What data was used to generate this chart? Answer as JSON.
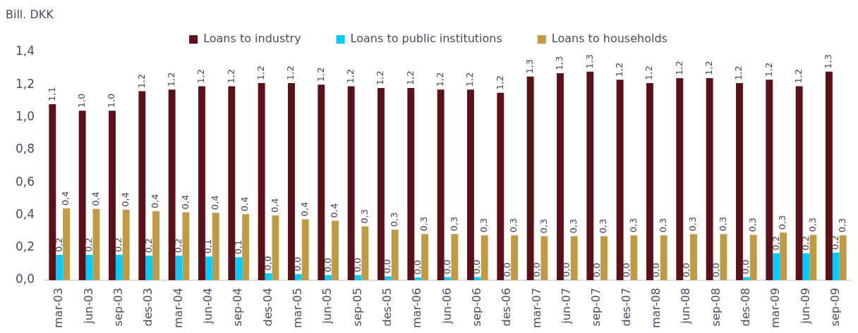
{
  "chart_data": {
    "type": "bar",
    "ylabel": "Bill. DKK",
    "categories": [
      "mar-03",
      "jun-03",
      "sep-03",
      "des-03",
      "mar-04",
      "jun-04",
      "sep-04",
      "des-04",
      "mar-05",
      "jun-05",
      "sep-05",
      "des-05",
      "mar-06",
      "jun-06",
      "sep-06",
      "des-06",
      "mar-07",
      "jun-07",
      "sep-07",
      "des-07",
      "mar-08",
      "jun-08",
      "sep-08",
      "des-08",
      "mar-09",
      "jun-09",
      "sep-09"
    ],
    "series": [
      {
        "name": "Loans to industry",
        "color": "#5c1118",
        "values": [
          1.08,
          1.04,
          1.04,
          1.16,
          1.17,
          1.19,
          1.19,
          1.21,
          1.21,
          1.2,
          1.19,
          1.18,
          1.18,
          1.17,
          1.17,
          1.15,
          1.25,
          1.27,
          1.28,
          1.23,
          1.21,
          1.24,
          1.24,
          1.21,
          1.23,
          1.19,
          1.28
        ],
        "value_labels": [
          "1,1",
          "1,0",
          "1,0",
          "1,2",
          "1,2",
          "1,2",
          "1,2",
          "1,2",
          "1,2",
          "1,2",
          "1,2",
          "1,2",
          "1,2",
          "1,2",
          "1,2",
          "1,2",
          "1,3",
          "1,3",
          "1,3",
          "1,2",
          "1,2",
          "1,2",
          "1,2",
          "1,2",
          "1,2",
          "1,2",
          "1,3"
        ]
      },
      {
        "name": "Loans to public institutions",
        "color": "#00ccff",
        "values": [
          0.155,
          0.155,
          0.155,
          0.15,
          0.15,
          0.145,
          0.141,
          0.042,
          0.037,
          0.031,
          0.031,
          0.023,
          0.017,
          0.019,
          0.019,
          0.002,
          0.002,
          0.002,
          0,
          0,
          0,
          0,
          0,
          0.019,
          0.165,
          0.165,
          0.169
        ],
        "value_labels": [
          "0,2",
          "0,2",
          "0,2",
          "0,2",
          "0,2",
          "0,1",
          "0,1",
          "0,0",
          "0,0",
          "0,0",
          "0,0",
          "0,0",
          "0,0",
          "0,0",
          "0,0",
          "0,0",
          "0,0",
          "0,0",
          "0,0",
          "0,0",
          "0,0",
          "0,0",
          "0,0",
          "0,0",
          "0,2",
          "0,2",
          "0,2"
        ]
      },
      {
        "name": "Loans to households",
        "color": "#c09a44",
        "values": [
          0.44,
          0.437,
          0.433,
          0.423,
          0.417,
          0.414,
          0.405,
          0.397,
          0.374,
          0.365,
          0.33,
          0.31,
          0.283,
          0.283,
          0.275,
          0.275,
          0.27,
          0.27,
          0.27,
          0.275,
          0.275,
          0.283,
          0.283,
          0.278,
          0.292,
          0.278,
          0.275
        ],
        "value_labels": [
          "0,4",
          "0,4",
          "0,4",
          "0,4",
          "0,4",
          "0,4",
          "0,4",
          "0,4",
          "0,4",
          "0,4",
          "0,3",
          "0,3",
          "0,3",
          "0,3",
          "0,3",
          "0,3",
          "0,3",
          "0,3",
          "0,3",
          "0,3",
          "0,3",
          "0,3",
          "0,3",
          "0,3",
          "0,3",
          "0,3",
          "0,3"
        ]
      }
    ],
    "ylim": [
      0,
      1.4
    ],
    "yticks": [
      {
        "value": 0,
        "label": "0,0"
      },
      {
        "value": 0.2,
        "label": "0,2"
      },
      {
        "value": 0.4,
        "label": "0,4"
      },
      {
        "value": 0.6,
        "label": "0,6"
      },
      {
        "value": 0.8,
        "label": "0,8"
      },
      {
        "value": 1,
        "label": "1,0"
      },
      {
        "value": 1.2,
        "label": "1,2"
      },
      {
        "value": 1.4,
        "label": "1,4"
      }
    ],
    "grid": false,
    "legend": "top"
  }
}
